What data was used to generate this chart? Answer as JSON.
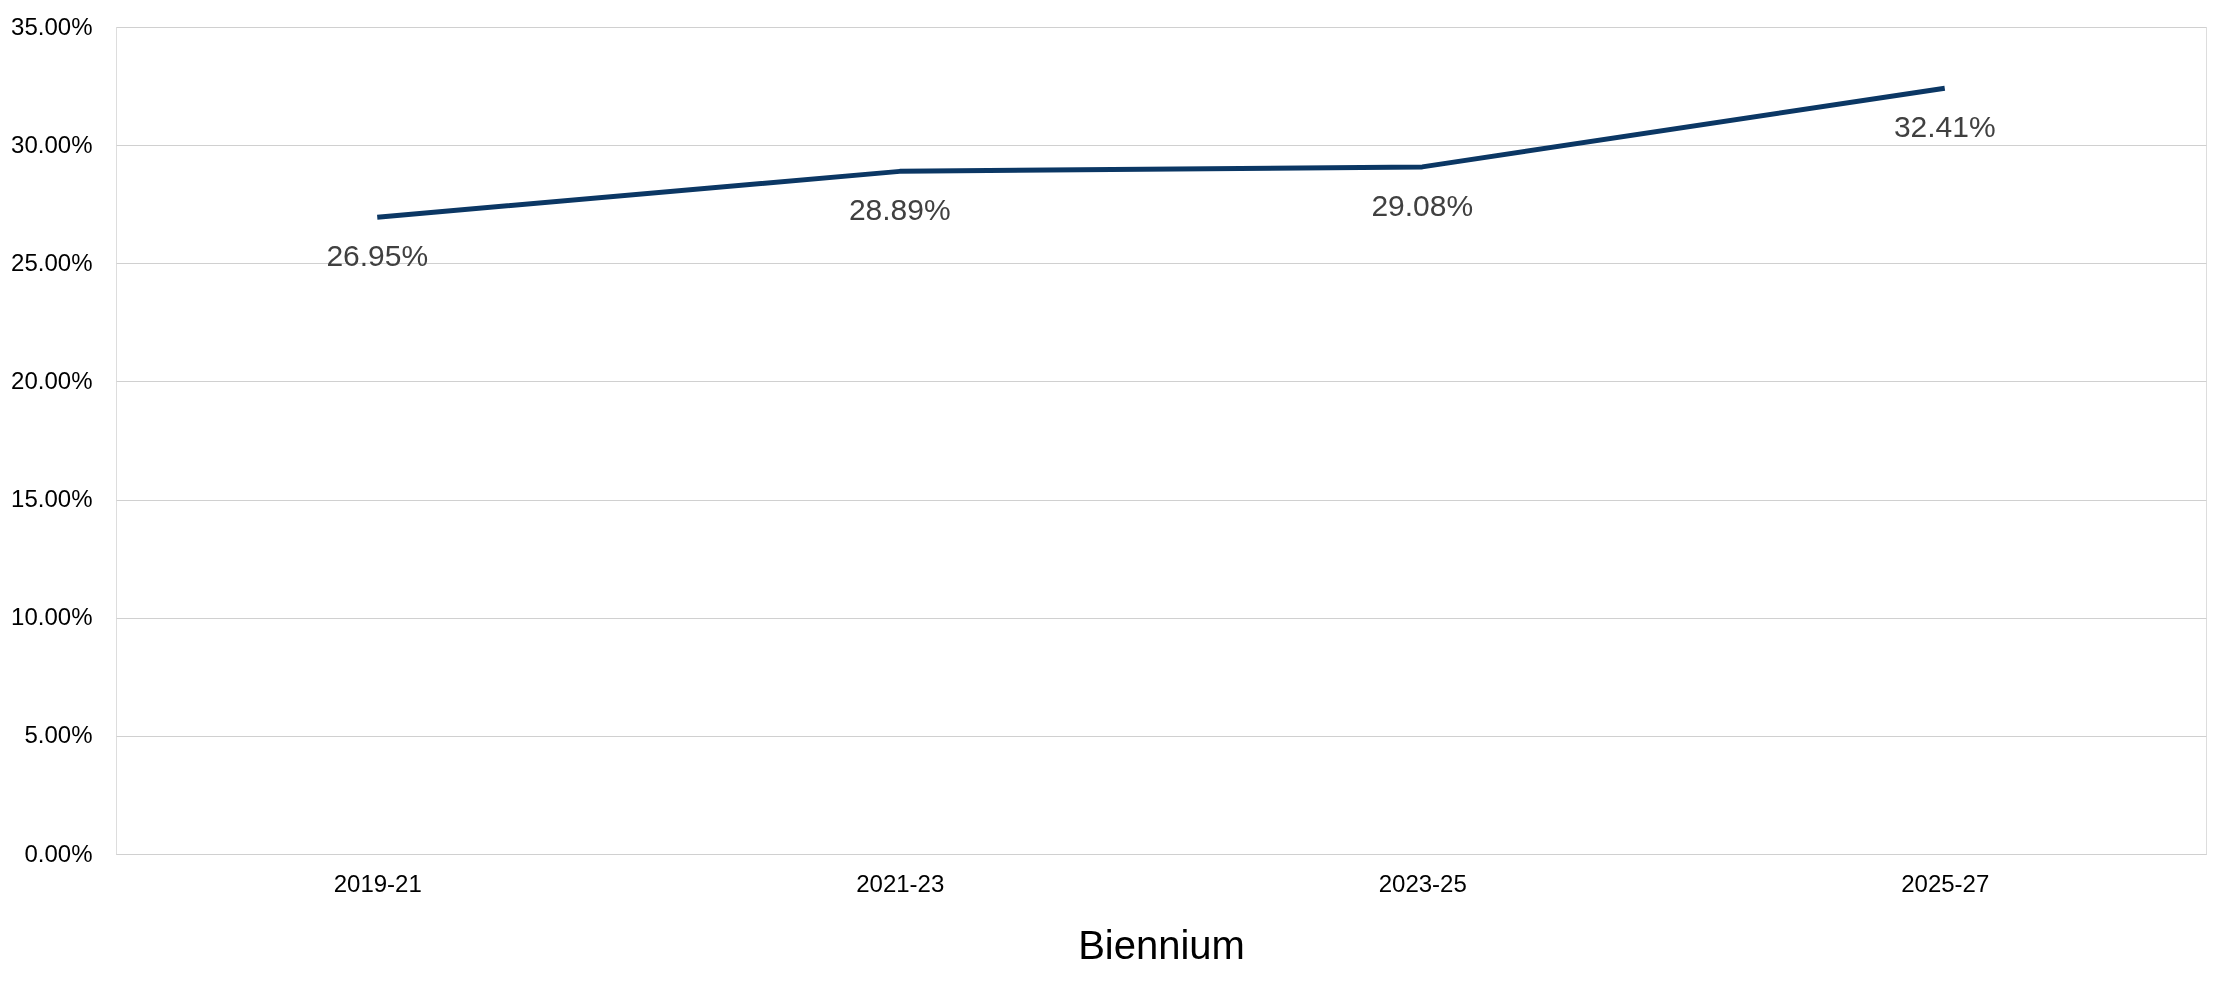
{
  "chart_data": {
    "type": "line",
    "xlabel": "Biennium",
    "categories": [
      "2019-21",
      "2021-23",
      "2023-25",
      "2025-27"
    ],
    "series": [
      {
        "color": "#0b3764",
        "values": [
          26.95,
          28.89,
          29.08,
          32.41
        ],
        "value_labels": [
          "26.95%",
          "28.89%",
          "29.08%",
          "32.41%"
        ]
      }
    ],
    "ylim": [
      0,
      35
    ],
    "yticks": [
      {
        "value": 0,
        "label": "0.00%"
      },
      {
        "value": 5,
        "label": "5.00%"
      },
      {
        "value": 10,
        "label": "10.00%"
      },
      {
        "value": 15,
        "label": "15.00%"
      },
      {
        "value": 20,
        "label": "20.00%"
      },
      {
        "value": 25,
        "label": "25.00%"
      },
      {
        "value": 30,
        "label": "30.00%"
      },
      {
        "value": 35,
        "label": "35.00%"
      }
    ],
    "grid": "y",
    "legend": false,
    "marker": "none",
    "line_style": "solid"
  }
}
